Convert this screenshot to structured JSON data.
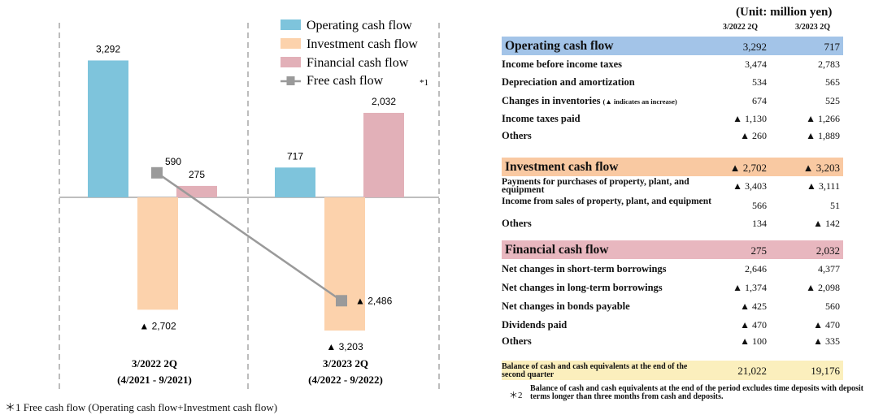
{
  "chart_data": {
    "type": "bar",
    "categories": [
      {
        "name": "3/2022 2Q",
        "period": "(4/2021 - 9/2021)"
      },
      {
        "name": "3/2023 2Q",
        "period": "(4/2022 - 9/2022)"
      }
    ],
    "series": [
      {
        "name": "Operating cash flow",
        "color": "#7ec4dc",
        "values": [
          3292,
          717
        ],
        "labels": [
          "3,292",
          "717"
        ]
      },
      {
        "name": "Investment cash flow",
        "color": "#fcd2ac",
        "values": [
          -2702,
          -3203
        ],
        "labels": [
          "▲ 2,702",
          "▲ 3,203"
        ]
      },
      {
        "name": "Financial cash flow",
        "color": "#e2b0b8",
        "values": [
          275,
          2032
        ],
        "labels": [
          "275",
          "2,032"
        ]
      }
    ],
    "line_series": {
      "name": "Free cash flow",
      "color": "#9a9a9a",
      "values": [
        590,
        -2486
      ],
      "labels": [
        "590",
        "▲ 2,486"
      ],
      "marker": "*1"
    },
    "ylim": [
      -3600,
      4200
    ]
  },
  "footnote1": "＊1 Free cash flow (Operating cash flow+Investment cash flow)",
  "table": {
    "unit": "(Unit: million yen)",
    "columns": [
      "3/2022 2Q",
      "3/2023 2Q"
    ],
    "sections": [
      {
        "label": "Operating cash flow",
        "color": "#a3c4e8",
        "values": [
          "3,292",
          "717"
        ],
        "rows": [
          {
            "label": "Income before income taxes",
            "values": [
              "3,474",
              "2,783"
            ]
          },
          {
            "label": "Depreciation and amortization",
            "values": [
              "534",
              "565"
            ]
          },
          {
            "label": "Changes in inventories",
            "label_note": "(▲ indicates an increase)",
            "values": [
              "674",
              "525"
            ]
          },
          {
            "label": "Income taxes paid",
            "values": [
              "▲ 1,130",
              "▲ 1,266"
            ]
          },
          {
            "label": "Others",
            "values": [
              "▲ 260",
              "▲ 1,889"
            ]
          }
        ]
      },
      {
        "label": "Investment cash flow",
        "color": "#f9c9a2",
        "values": [
          "▲ 2,702",
          "▲ 3,203"
        ],
        "rows": [
          {
            "label": "Payments for purchases of property, plant, and equipment",
            "values": [
              "▲ 3,403",
              "▲ 3,111"
            ]
          },
          {
            "label": "Income from sales of property, plant, and equipment",
            "values": [
              "566",
              "51"
            ]
          },
          {
            "label": "Others",
            "values": [
              "134",
              "▲ 142"
            ]
          }
        ]
      },
      {
        "label": "Financial cash flow",
        "color": "#e8b7bf",
        "values": [
          "275",
          "2,032"
        ],
        "rows": [
          {
            "label": "Net changes in short-term borrowings",
            "values": [
              "2,646",
              "4,377"
            ]
          },
          {
            "label": "Net changes in long-term borrowings",
            "values": [
              "▲ 1,374",
              "▲ 2,098"
            ]
          },
          {
            "label": "Net changes in bonds payable",
            "values": [
              "▲ 425",
              "560"
            ]
          },
          {
            "label": "Dividends paid",
            "values": [
              "▲ 470",
              "▲ 470"
            ]
          },
          {
            "label": "Others",
            "values": [
              "▲ 100",
              "▲ 335"
            ]
          }
        ]
      }
    ],
    "balance": {
      "label": "Balance of cash and cash equivalents at the end of the second quarter",
      "color": "#fbefbd",
      "values": [
        "21,022",
        "19,176"
      ]
    },
    "footnote2": {
      "mark": "＊2",
      "text": "Balance of cash and cash equivalents at the end of the period excludes time deposits with deposit terms longer than three months from cash and deposits."
    }
  }
}
